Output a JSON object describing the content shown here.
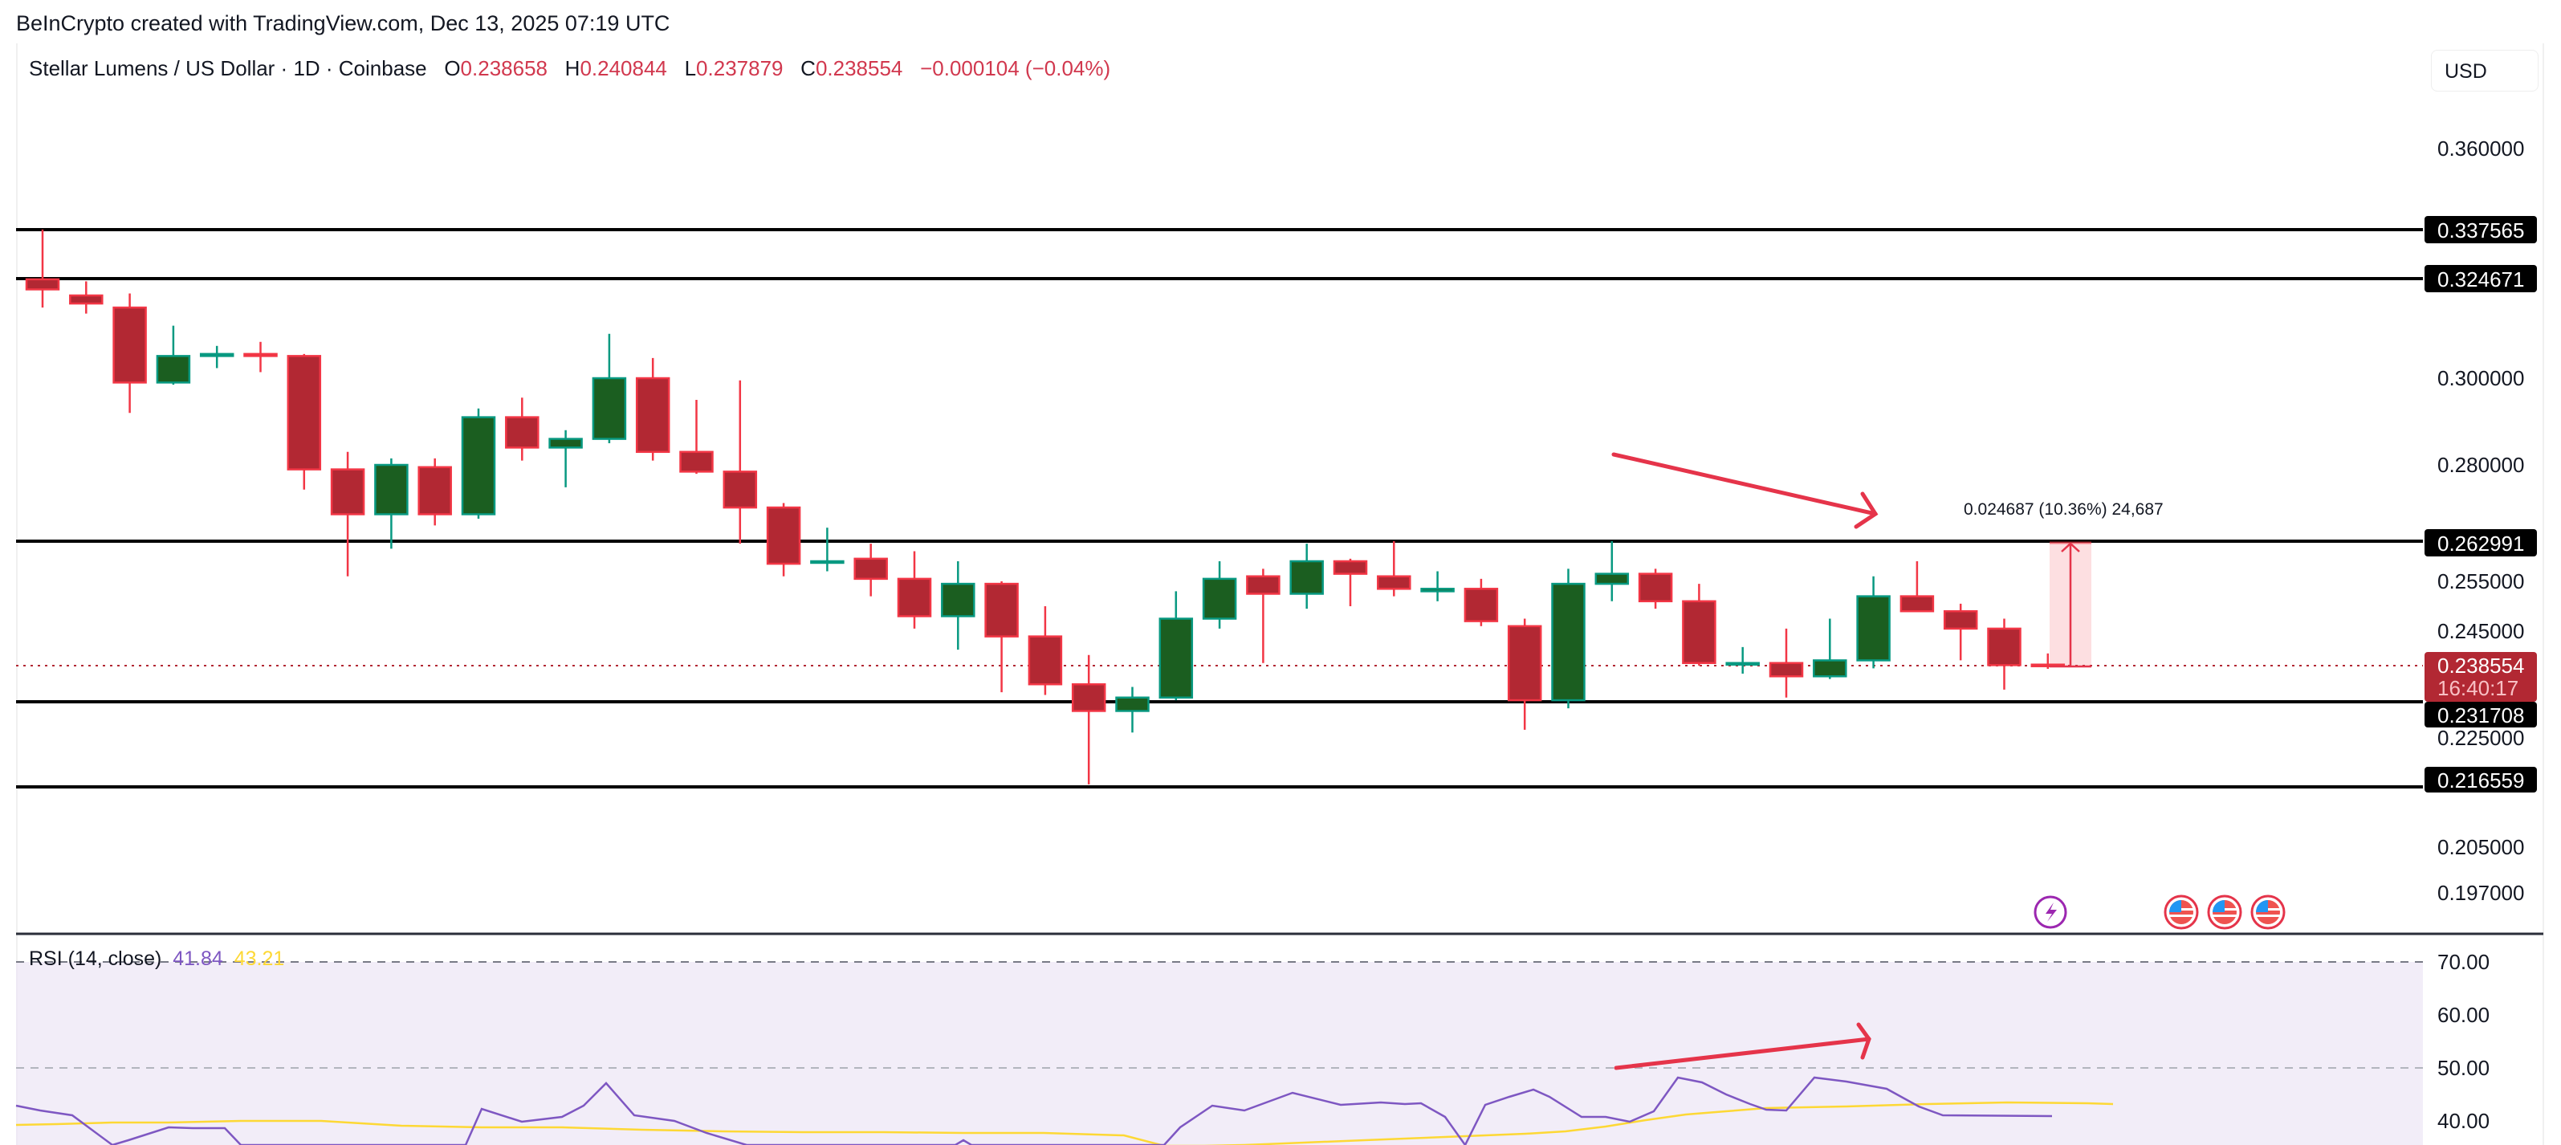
{
  "credit": "BeInCrypto created with TradingView.com, Dec 13, 2025 07:19 UTC",
  "header": {
    "symbol": "Stellar Lumens / US Dollar · 1D · Coinbase",
    "o_label": "O",
    "o": "0.238658",
    "h_label": "H",
    "h": "0.240844",
    "l_label": "L",
    "l": "0.237879",
    "c_label": "C",
    "c": "0.238554",
    "change": "−0.000104 (−0.04%)",
    "currency": "USD"
  },
  "price_axis": {
    "ticks": [
      "0.360000",
      "0.300000",
      "0.280000",
      "0.255000",
      "0.245000",
      "0.225000",
      "0.205000",
      "0.197000"
    ],
    "levels": [
      "0.337565",
      "0.324671",
      "0.262991",
      "0.231708",
      "0.216559"
    ],
    "last_price": "0.238554",
    "countdown": "16:40:17"
  },
  "measure": {
    "label": "0.024687 (10.36%) 24,687"
  },
  "rsi": {
    "title": "RSI (14, close)",
    "value": "41.84",
    "ma_value": "43.21",
    "ticks": [
      "70.00",
      "60.00",
      "50.00",
      "40.00"
    ]
  },
  "colors": {
    "up": "#1b5e20",
    "up_border": "#089981",
    "down": "#b22833",
    "down_border": "#f23645",
    "rsi": "#7e57c2",
    "rsi_ma": "#fdd835",
    "arrow": "#e5344a"
  },
  "chart_data": {
    "type": "candlestick",
    "title": "Stellar Lumens / US Dollar · 1D · Coinbase",
    "ylabel": "USD",
    "ylim": [
      0.195,
      0.37
    ],
    "horizontal_levels": [
      0.337565,
      0.324671,
      0.262991,
      0.231708,
      0.216559
    ],
    "candles_approx": [
      {
        "o": 0.3245,
        "h": 0.3376,
        "l": 0.3175,
        "c": 0.322
      },
      {
        "o": 0.3205,
        "h": 0.324,
        "l": 0.316,
        "c": 0.3185
      },
      {
        "o": 0.3175,
        "h": 0.321,
        "l": 0.292,
        "c": 0.299
      },
      {
        "o": 0.299,
        "h": 0.313,
        "l": 0.2985,
        "c": 0.3055
      },
      {
        "o": 0.3055,
        "h": 0.308,
        "l": 0.3025,
        "c": 0.306
      },
      {
        "o": 0.306,
        "h": 0.309,
        "l": 0.3015,
        "c": 0.3055
      },
      {
        "o": 0.3055,
        "h": 0.306,
        "l": 0.2745,
        "c": 0.279
      },
      {
        "o": 0.279,
        "h": 0.283,
        "l": 0.256,
        "c": 0.269
      },
      {
        "o": 0.269,
        "h": 0.2815,
        "l": 0.2615,
        "c": 0.28
      },
      {
        "o": 0.2795,
        "h": 0.2815,
        "l": 0.2665,
        "c": 0.269
      },
      {
        "o": 0.269,
        "h": 0.293,
        "l": 0.268,
        "c": 0.291
      },
      {
        "o": 0.291,
        "h": 0.2955,
        "l": 0.281,
        "c": 0.284
      },
      {
        "o": 0.284,
        "h": 0.288,
        "l": 0.275,
        "c": 0.286
      },
      {
        "o": 0.286,
        "h": 0.311,
        "l": 0.285,
        "c": 0.3
      },
      {
        "o": 0.3,
        "h": 0.305,
        "l": 0.281,
        "c": 0.283
      },
      {
        "o": 0.283,
        "h": 0.295,
        "l": 0.278,
        "c": 0.2785
      },
      {
        "o": 0.2785,
        "h": 0.2995,
        "l": 0.2625,
        "c": 0.2705
      },
      {
        "o": 0.2705,
        "h": 0.2715,
        "l": 0.256,
        "c": 0.2585
      },
      {
        "o": 0.259,
        "h": 0.266,
        "l": 0.257,
        "c": 0.259
      },
      {
        "o": 0.2595,
        "h": 0.2625,
        "l": 0.252,
        "c": 0.2555
      },
      {
        "o": 0.2555,
        "h": 0.261,
        "l": 0.2455,
        "c": 0.248
      },
      {
        "o": 0.248,
        "h": 0.259,
        "l": 0.2415,
        "c": 0.2545
      },
      {
        "o": 0.2545,
        "h": 0.255,
        "l": 0.2335,
        "c": 0.244
      },
      {
        "o": 0.244,
        "h": 0.25,
        "l": 0.233,
        "c": 0.235
      },
      {
        "o": 0.235,
        "h": 0.2405,
        "l": 0.217,
        "c": 0.23
      },
      {
        "o": 0.23,
        "h": 0.2345,
        "l": 0.226,
        "c": 0.2325
      },
      {
        "o": 0.2325,
        "h": 0.253,
        "l": 0.232,
        "c": 0.2475
      },
      {
        "o": 0.2475,
        "h": 0.259,
        "l": 0.2455,
        "c": 0.2555
      },
      {
        "o": 0.256,
        "h": 0.2575,
        "l": 0.239,
        "c": 0.2525
      },
      {
        "o": 0.2525,
        "h": 0.2625,
        "l": 0.2495,
        "c": 0.259
      },
      {
        "o": 0.259,
        "h": 0.2595,
        "l": 0.25,
        "c": 0.2565
      },
      {
        "o": 0.256,
        "h": 0.263,
        "l": 0.252,
        "c": 0.2535
      },
      {
        "o": 0.253,
        "h": 0.257,
        "l": 0.251,
        "c": 0.2535
      },
      {
        "o": 0.2535,
        "h": 0.2555,
        "l": 0.246,
        "c": 0.247
      },
      {
        "o": 0.246,
        "h": 0.2475,
        "l": 0.2265,
        "c": 0.232
      },
      {
        "o": 0.232,
        "h": 0.2575,
        "l": 0.2305,
        "c": 0.2545
      },
      {
        "o": 0.2545,
        "h": 0.263,
        "l": 0.251,
        "c": 0.2565
      },
      {
        "o": 0.2565,
        "h": 0.2575,
        "l": 0.2495,
        "c": 0.251
      },
      {
        "o": 0.251,
        "h": 0.2545,
        "l": 0.2385,
        "c": 0.239
      },
      {
        "o": 0.239,
        "h": 0.242,
        "l": 0.237,
        "c": 0.239
      },
      {
        "o": 0.239,
        "h": 0.2455,
        "l": 0.2325,
        "c": 0.2365
      },
      {
        "o": 0.2365,
        "h": 0.2475,
        "l": 0.236,
        "c": 0.2395
      },
      {
        "o": 0.2395,
        "h": 0.256,
        "l": 0.238,
        "c": 0.252
      },
      {
        "o": 0.252,
        "h": 0.259,
        "l": 0.2495,
        "c": 0.249
      },
      {
        "o": 0.249,
        "h": 0.2505,
        "l": 0.2395,
        "c": 0.2455
      },
      {
        "o": 0.2455,
        "h": 0.2475,
        "l": 0.234,
        "c": 0.2386
      },
      {
        "o": 0.2387,
        "h": 0.2408,
        "l": 0.2379,
        "c": 0.2386
      }
    ],
    "measure_annotation": {
      "delta": 0.024687,
      "percent": 10.36,
      "ticks": 24687
    },
    "rsi": {
      "period": 14,
      "source": "close",
      "value": 41.84,
      "ma": 43.21,
      "levels": [
        70,
        50
      ],
      "ylim": [
        35,
        72
      ]
    },
    "annotations": [
      "Bearish price arrow (lower highs)",
      "Bullish RSI arrow (higher highs) — hidden bearish divergence"
    ]
  }
}
